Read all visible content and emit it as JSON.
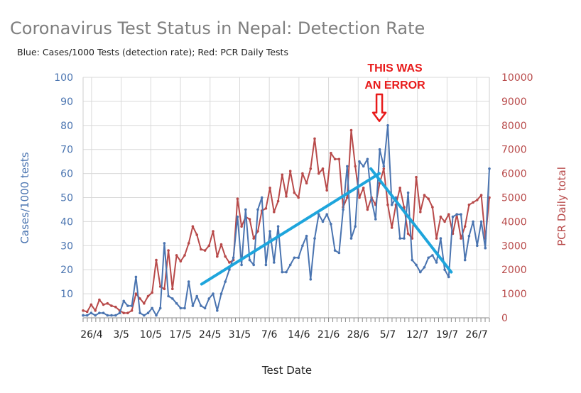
{
  "chart_data": {
    "type": "line",
    "title": "Coronavirus Test Status in Nepal: Detection Rate",
    "subtitle": "Blue: Cases/1000 Tests (detection rate); Red: PCR Daily Tests",
    "xlabel": "Test Date",
    "ylabel_left": "Cases/1000 tests",
    "ylabel_right": "PCR Daily total",
    "ylim_left": [
      0,
      100
    ],
    "ylim_right": [
      0,
      10000
    ],
    "yticks_left": [
      "10",
      "20",
      "30",
      "40",
      "50",
      "60",
      "70",
      "80",
      "90",
      "100"
    ],
    "yticks_right": [
      "0",
      "1000",
      "2000",
      "3000",
      "4000",
      "5000",
      "6000",
      "7000",
      "8000",
      "9000",
      "10000"
    ],
    "x_tick_labels": [
      "26/4",
      "3/5",
      "10/5",
      "17/5",
      "24/5",
      "31/5",
      "7/6",
      "14/6",
      "21/6",
      "28/6",
      "5/7",
      "12/7",
      "19/7",
      "26/7"
    ],
    "x_day_start": "24/4",
    "x_day_end": "29/7",
    "grid": true,
    "colors": {
      "left_series": "#4a74b0",
      "right_series": "#b84a4a",
      "trend": "#1ea5dc",
      "annotation": "#e81a1a",
      "grid": "#d9d9d9"
    },
    "series": [
      {
        "name": "Cases/1000 Tests (detection rate)",
        "axis": "left",
        "values": [
          1,
          1,
          2,
          1,
          2,
          2,
          1,
          1,
          1,
          2,
          7,
          5,
          5,
          17,
          2,
          1,
          2,
          4,
          1,
          4,
          31,
          9,
          8,
          6,
          4,
          4,
          15,
          5,
          9,
          5,
          4,
          8,
          10,
          3,
          10,
          15,
          20,
          25,
          42,
          22,
          45,
          24,
          22,
          45,
          50,
          22,
          36,
          23,
          38,
          19,
          19,
          22,
          25,
          25,
          30,
          34,
          16,
          33,
          43,
          40,
          43,
          39,
          28,
          27,
          45,
          63,
          33,
          38,
          65,
          63,
          66,
          49,
          41,
          70,
          63,
          80,
          47,
          50,
          33,
          33,
          52,
          24,
          22,
          19,
          21,
          25,
          26,
          23,
          33,
          20,
          17,
          42,
          43,
          43,
          24,
          34,
          40,
          30,
          40,
          29,
          62
        ]
      },
      {
        "name": "PCR Daily Tests",
        "axis": "right",
        "values": [
          300,
          250,
          550,
          300,
          750,
          550,
          600,
          500,
          450,
          300,
          200,
          200,
          300,
          1000,
          800,
          600,
          900,
          1050,
          2400,
          1300,
          1200,
          2800,
          1200,
          2600,
          2350,
          2600,
          3100,
          3800,
          3450,
          2850,
          2800,
          3000,
          3600,
          2550,
          3050,
          2550,
          2300,
          2400,
          4950,
          3800,
          4200,
          4100,
          3300,
          3600,
          4450,
          4550,
          5400,
          4400,
          4850,
          5950,
          5050,
          6100,
          5200,
          5000,
          6000,
          5600,
          6200,
          7450,
          6000,
          6200,
          5300,
          6850,
          6600,
          6600,
          4600,
          5000,
          7800,
          6300,
          5000,
          5400,
          4500,
          5000,
          4700,
          5600,
          6200,
          4700,
          3750,
          4700,
          5400,
          4600,
          3500,
          3300,
          5850,
          4400,
          5100,
          4950,
          4600,
          3300,
          4200,
          4000,
          4300,
          3500,
          4300,
          3300,
          3800,
          4700,
          4800,
          4900,
          5100,
          3300,
          5000
        ]
      }
    ],
    "trend_lines": [
      {
        "from": [
          "22/5",
          14
        ],
        "to": [
          "3/7",
          60
        ]
      },
      {
        "from": [
          "1/7",
          62
        ],
        "to": [
          "20/7",
          19
        ]
      }
    ],
    "annotation": {
      "text_lines": [
        "THIS WAS",
        "AN ERROR"
      ],
      "points_to": [
        "3/7",
        80
      ]
    }
  }
}
